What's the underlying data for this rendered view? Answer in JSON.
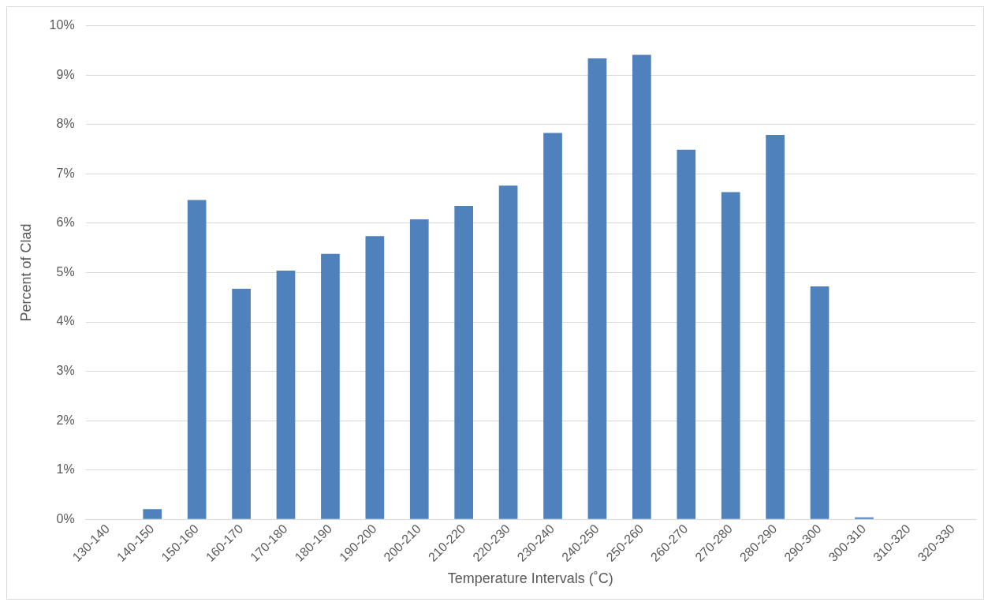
{
  "chart_data": {
    "type": "bar",
    "xlabel": "Temperature Intervals (˚C)",
    "ylabel": "Percent of Clad",
    "categories": [
      "130-140",
      "140-150",
      "150-160",
      "160-170",
      "170-180",
      "180-190",
      "190-200",
      "200-210",
      "210-220",
      "220-230",
      "230-240",
      "240-250",
      "250-260",
      "260-270",
      "270-280",
      "280-290",
      "290-300",
      "300-310",
      "310-320",
      "320-330"
    ],
    "values": [
      0,
      0.21,
      6.47,
      4.67,
      5.04,
      5.38,
      5.74,
      6.08,
      6.35,
      6.76,
      7.83,
      9.34,
      9.41,
      7.49,
      6.63,
      7.79,
      4.72,
      0.04,
      0,
      0
    ],
    "color": "#4f81bd",
    "ylim": [
      0,
      10
    ],
    "yticks": [
      {
        "value": 0,
        "label": "0%"
      },
      {
        "value": 1,
        "label": "1%"
      },
      {
        "value": 2,
        "label": "2%"
      },
      {
        "value": 3,
        "label": "3%"
      },
      {
        "value": 4,
        "label": "4%"
      },
      {
        "value": 5,
        "label": "5%"
      },
      {
        "value": 6,
        "label": "6%"
      },
      {
        "value": 7,
        "label": "7%"
      },
      {
        "value": 8,
        "label": "8%"
      },
      {
        "value": 9,
        "label": "9%"
      },
      {
        "value": 10,
        "label": "10%"
      }
    ],
    "grid": "y",
    "legend": false
  }
}
